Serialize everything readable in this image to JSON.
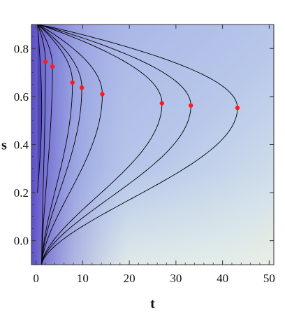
{
  "chart_data": {
    "type": "contour",
    "title": "",
    "xlabel": "t",
    "ylabel": "s",
    "xlim": [
      -1,
      51
    ],
    "ylim": [
      -0.1,
      0.9
    ],
    "x_ticks": [
      0,
      10,
      20,
      30,
      40,
      50
    ],
    "x_tick_labels": [
      "0",
      "10",
      "20",
      "30",
      "40",
      "50"
    ],
    "y_ticks": [
      0.0,
      0.2,
      0.4,
      0.6,
      0.8
    ],
    "y_tick_labels": [
      "0.0",
      "0.2",
      "0.4",
      "0.6",
      "0.8"
    ],
    "grid": false,
    "legend": "none",
    "colors": {
      "dark": "#5a4fc8",
      "mid": "#a9b2e6",
      "light": "#f1ebdc",
      "contour": "#000000",
      "point": "#ff1a1a"
    },
    "contour_peaks": [
      {
        "t": 2,
        "s": 0.745
      },
      {
        "t": 3.5,
        "s": 0.725
      },
      {
        "t": 7.8,
        "s": 0.658
      },
      {
        "t": 9.8,
        "s": 0.637
      },
      {
        "t": 14.2,
        "s": 0.61
      },
      {
        "t": 27,
        "s": 0.572
      },
      {
        "t": 33.2,
        "s": 0.563
      },
      {
        "t": 43.2,
        "s": 0.553
      }
    ],
    "points": [
      {
        "t": 2,
        "s": 0.745
      },
      {
        "t": 3.5,
        "s": 0.725
      },
      {
        "t": 7.8,
        "s": 0.658
      },
      {
        "t": 9.8,
        "s": 0.637
      },
      {
        "t": 14.2,
        "s": 0.61
      },
      {
        "t": 27,
        "s": 0.572
      },
      {
        "t": 33.2,
        "s": 0.563
      },
      {
        "t": 43.2,
        "s": 0.553
      }
    ]
  }
}
